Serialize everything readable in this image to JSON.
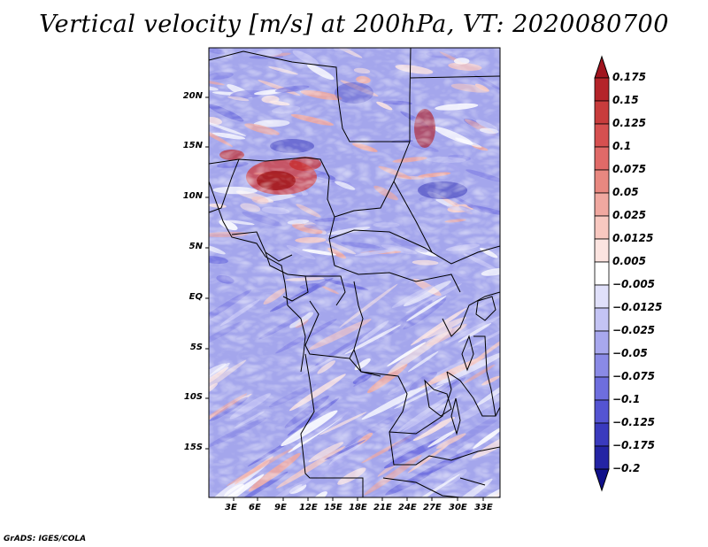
{
  "title": "Vertical velocity [m/s] at 200hPa, VT: 2020080700",
  "footer": "GrADS: IGES/COLA",
  "map": {
    "lat_ticks": [
      "20N",
      "15N",
      "10N",
      "5N",
      "EQ",
      "5S",
      "10S",
      "15S"
    ],
    "lon_ticks": [
      "3E",
      "6E",
      "9E",
      "12E",
      "15E",
      "18E",
      "21E",
      "24E",
      "27E",
      "30E",
      "33E"
    ]
  },
  "colorbar": {
    "levels": [
      "0.175",
      "0.15",
      "0.125",
      "0.1",
      "0.075",
      "0.05",
      "0.025",
      "0.0125",
      "0.005",
      "−0.005",
      "−0.0125",
      "−0.025",
      "−0.05",
      "−0.075",
      "−0.1",
      "−0.125",
      "−0.175",
      "−0.2"
    ],
    "colors": [
      "#a0141e",
      "#b4242a",
      "#c83c3c",
      "#d65050",
      "#e06a68",
      "#e88880",
      "#f0a8a0",
      "#f8c8c0",
      "#fce4e0",
      "#ffffff",
      "#e0e0fa",
      "#c4c4f4",
      "#a8a8ee",
      "#8a8ae6",
      "#6e6ede",
      "#5454d2",
      "#3a3abe",
      "#2424a4",
      "#10108a"
    ]
  }
}
